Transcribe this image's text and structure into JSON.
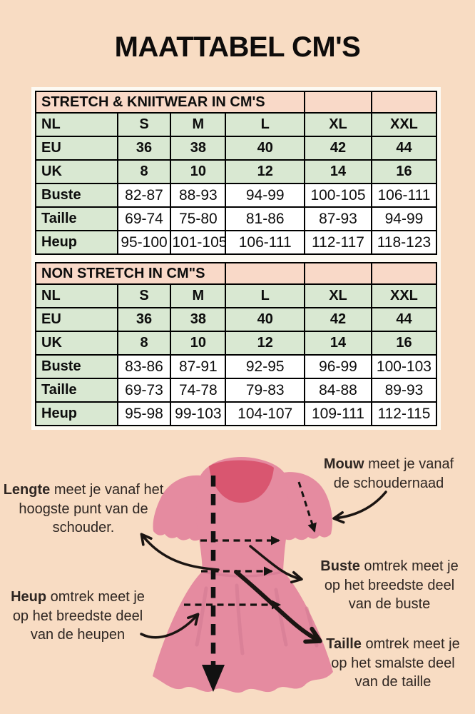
{
  "page": {
    "title": "MAATTABEL CM'S"
  },
  "colors": {
    "background": "#f8dcc3",
    "header_bg": "#f9d9c8",
    "green": "#d9e8d2",
    "white": "#ffffff",
    "pink": "#e58ba0",
    "dark_pink": "#d95670",
    "fold": "#cf7790",
    "ink": "#2e2622",
    "black": "#1b1512"
  },
  "tables": [
    {
      "header": "STRETCH & KNIITWEAR IN CM'S",
      "header_span": 4,
      "empty_cols": 2,
      "size_rows": [
        {
          "label": "NL",
          "values": [
            "S",
            "M",
            "L",
            "XL",
            "XXL"
          ]
        },
        {
          "label": "EU",
          "values": [
            "36",
            "38",
            "40",
            "42",
            "44"
          ]
        },
        {
          "label": "UK",
          "values": [
            "8",
            "10",
            "12",
            "14",
            "16"
          ]
        }
      ],
      "measure_rows": [
        {
          "label": "Buste",
          "values": [
            "82-87",
            "88-93",
            "94-99",
            "100-105",
            "106-111"
          ]
        },
        {
          "label": "Taille",
          "values": [
            "69-74",
            "75-80",
            "81-86",
            "87-93",
            "94-99"
          ]
        },
        {
          "label": "Heup",
          "values": [
            "95-100",
            "101-105",
            "106-111",
            "112-117",
            "118-123"
          ]
        }
      ]
    },
    {
      "header": "NON STRETCH IN CM\"S",
      "header_span": 3,
      "empty_cols": 3,
      "size_rows": [
        {
          "label": "NL",
          "values": [
            "S",
            "M",
            "L",
            "XL",
            "XXL"
          ]
        },
        {
          "label": "EU",
          "values": [
            "36",
            "38",
            "40",
            "42",
            "44"
          ]
        },
        {
          "label": "UK",
          "values": [
            "8",
            "10",
            "12",
            "14",
            "16"
          ]
        }
      ],
      "measure_rows": [
        {
          "label": "Buste",
          "values": [
            "83-86",
            "87-91",
            "92-95",
            "96-99",
            "100-103"
          ]
        },
        {
          "label": "Taille",
          "values": [
            "69-73",
            "74-78",
            "79-83",
            "84-88",
            "89-93"
          ]
        },
        {
          "label": "Heup",
          "values": [
            "95-98",
            "99-103",
            "104-107",
            "109-111",
            "112-115"
          ]
        }
      ]
    }
  ],
  "diagram": {
    "annotations": {
      "lengte": {
        "word": "Lengte",
        "text": " meet je vanaf het\nhoogste punt van de\nschouder."
      },
      "mouw": {
        "word": "Mouw",
        "text": " meet je vanaf\nde schoudernaad"
      },
      "buste": {
        "word": "Buste",
        "text": " omtrek meet je\nop het breedste deel\nvan de buste"
      },
      "heup": {
        "word": "Heup",
        "text": " omtrek meet je\nop het breedste deel\nvan de heupen"
      },
      "taille": {
        "word": "Taille",
        "text": " omtrek meet je\nop het smalste deel\nvan de taille"
      }
    }
  }
}
